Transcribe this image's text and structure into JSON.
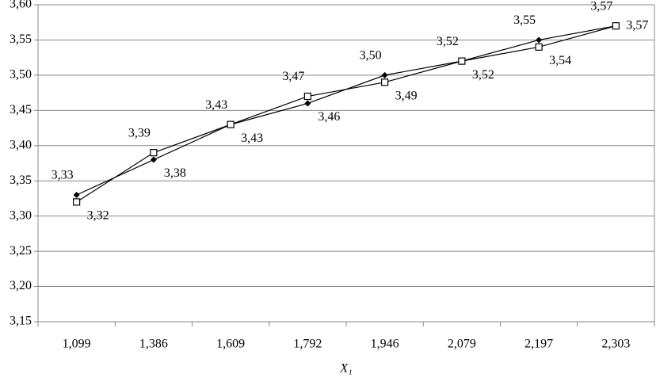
{
  "chart_data": {
    "type": "line",
    "x_label": "X₁",
    "categories": [
      "1,099",
      "1,386",
      "1,609",
      "1,792",
      "1,946",
      "2,079",
      "2,197",
      "2,303"
    ],
    "series": [
      {
        "color": "#000000",
        "marker": "diamond",
        "values": [
          3.33,
          3.38,
          3.43,
          3.46,
          3.5,
          3.52,
          3.55,
          3.57
        ],
        "value_labels": [
          "3,33",
          "3,38",
          "3,43",
          "3,46",
          "3,50",
          "3,52",
          "3,55",
          "3,57"
        ]
      },
      {
        "color": "#000000",
        "marker": "square",
        "values": [
          3.32,
          3.39,
          3.43,
          3.47,
          3.49,
          3.52,
          3.54,
          3.57
        ],
        "value_labels": [
          "3,32",
          "3,39",
          "3,43",
          "3,47",
          "3,49",
          "3,52",
          "3,54",
          "3,57"
        ]
      }
    ],
    "ylim": [
      3.15,
      3.6
    ],
    "yticks": [
      {
        "value": 3.15,
        "label": "3,15"
      },
      {
        "value": 3.2,
        "label": "3,20"
      },
      {
        "value": 3.25,
        "label": "3,25"
      },
      {
        "value": 3.3,
        "label": "3,30"
      },
      {
        "value": 3.35,
        "label": "3,35"
      },
      {
        "value": 3.4,
        "label": "3,40"
      },
      {
        "value": 3.45,
        "label": "3,45"
      },
      {
        "value": 3.5,
        "label": "3,50"
      },
      {
        "value": 3.55,
        "label": "3,55"
      },
      {
        "value": 3.6,
        "label": "3,60"
      }
    ],
    "grid": true
  }
}
